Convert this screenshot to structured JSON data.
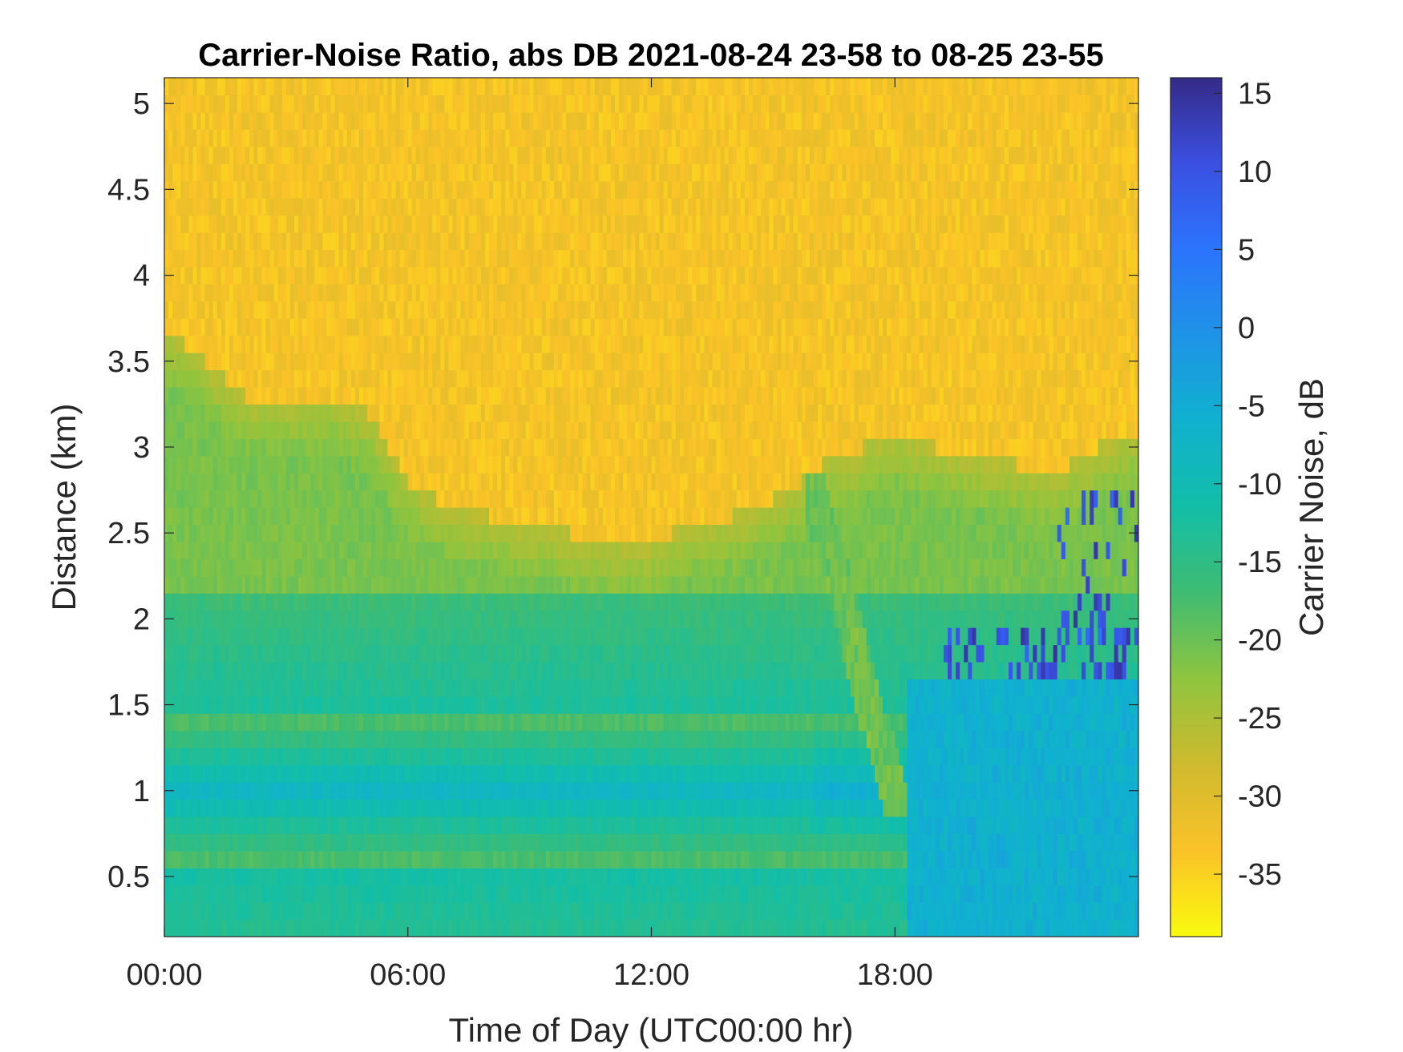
{
  "chart_data": {
    "type": "heatmap",
    "title": "Carrier-Noise Ratio, abs DB 2021-08-24 23-58 to 08-25 23-55",
    "xlabel": "Time of Day (UTC00:00 hr)",
    "ylabel": "Distance (km)",
    "colorbar_label": "Carrier Noise, dB",
    "x_range_hours": [
      0,
      24
    ],
    "x_ticks": [
      0,
      6,
      12,
      18
    ],
    "x_tick_labels": [
      "00:00",
      "06:00",
      "12:00",
      "18:00"
    ],
    "ylim": [
      0.15,
      5.15
    ],
    "y_ticks": [
      0.5,
      1,
      1.5,
      2,
      2.5,
      3,
      3.5,
      4,
      4.5,
      5
    ],
    "y_tick_labels": [
      "0.5",
      "1",
      "1.5",
      "2",
      "2.5",
      "3",
      "3.5",
      "4",
      "4.5",
      "5"
    ],
    "clim": [
      -39,
      16
    ],
    "colorbar_ticks": [
      15,
      10,
      5,
      0,
      -5,
      -10,
      -15,
      -20,
      -25,
      -30,
      -35
    ],
    "colorbar_tick_labels": [
      "15",
      "10",
      "5",
      "0",
      "-5",
      "-10",
      "-15",
      "-20",
      "-25",
      "-30",
      "-35"
    ],
    "colormap": "parula",
    "colormap_stops": [
      "#f9fb0e",
      "#fac228",
      "#cfba2e",
      "#8fc43e",
      "#3fbc72",
      "#12bea7",
      "#10b1cf",
      "#1e93e6",
      "#2b74fc",
      "#3b50e2",
      "#352a87"
    ],
    "boundary_profile": {
      "hours": [
        0,
        1,
        2,
        4,
        5,
        6,
        7,
        8,
        9,
        10,
        11,
        12,
        13,
        14,
        15,
        16,
        16.5,
        17,
        17.5,
        18,
        19,
        20,
        21,
        22,
        23,
        24
      ],
      "top_km": [
        3.7,
        3.5,
        3.3,
        3.3,
        3.2,
        2.8,
        2.65,
        2.6,
        2.55,
        2.5,
        2.45,
        2.45,
        2.55,
        2.6,
        2.7,
        2.85,
        2.95,
        2.95,
        3.05,
        3.1,
        3.0,
        2.95,
        2.9,
        2.85,
        3.0,
        3.1
      ]
    },
    "field_description": "Low carrier-noise (-35 to -30 dB, yellow) above the boundary; -20 to -15 dB (green) just below it; -10 to -5 dB (teal/blue) between about 0.6 and 1.4 km; strongest -5 to 15 dB (blue) patches near 1.7-2.0 km after 19:00."
  }
}
